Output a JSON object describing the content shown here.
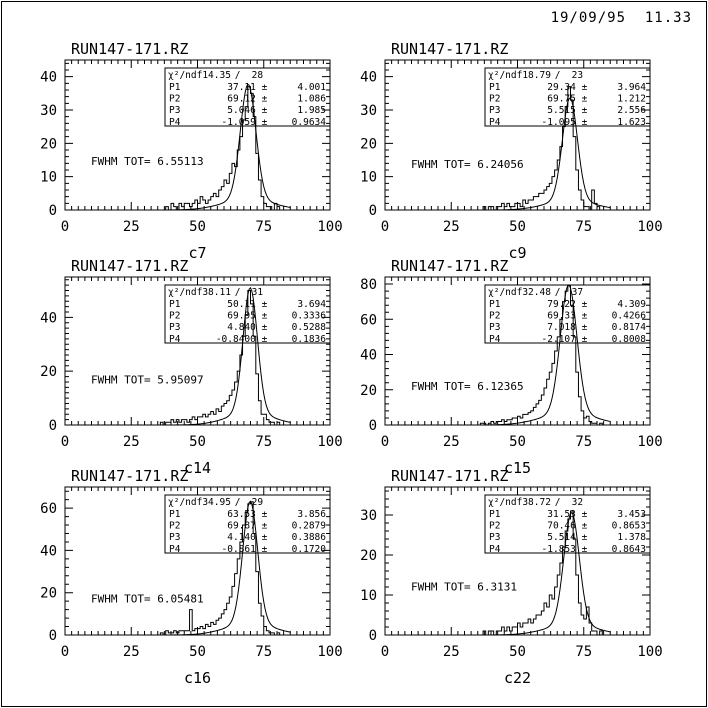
{
  "window": {
    "bg": "#ffffff",
    "fg": "#000000"
  },
  "header": {
    "datetime": "19/09/95  11.33"
  },
  "chart_data": [
    {
      "type": "bar",
      "subtype": "step-histogram-with-gaussian-fit",
      "title": "RUN147-171.RZ",
      "xlabel": "c7",
      "xlim": [
        0,
        100
      ],
      "xticks": [
        0,
        25,
        50,
        75,
        100
      ],
      "x_minor_step": 2.5,
      "ylim": [
        0,
        45
      ],
      "yticks": [
        0,
        10,
        20,
        30,
        40
      ],
      "y_minor_step": 2,
      "grid": false,
      "stats": {
        "chi2_label": "χ²/ndf",
        "chi2": "14.35",
        "ndf": "28",
        "rows": [
          [
            "P1",
            "37.11",
            "4.001"
          ],
          [
            "P2",
            "69.12",
            "1.086"
          ],
          [
            "P3",
            "5.046",
            "1.985"
          ],
          [
            "P4",
            "-1.059",
            "0.9634"
          ]
        ]
      },
      "fwhm_label": "FWHM TOT=  6.55113",
      "fit": {
        "amp": 37,
        "mean": 69.1,
        "sigma": 2.9
      },
      "hist": {
        "x_start": 35,
        "bin_width": 1,
        "counts": [
          0,
          0,
          0,
          1,
          0,
          2,
          1,
          0,
          2,
          1,
          2,
          2,
          1,
          2,
          3,
          2,
          4,
          3,
          2,
          3,
          4,
          5,
          4,
          6,
          7,
          9,
          8,
          11,
          14,
          13,
          18,
          22,
          27,
          31,
          37,
          35,
          28,
          17,
          9,
          4,
          2,
          1,
          1,
          0,
          2,
          1,
          0,
          0,
          0,
          0
        ]
      }
    },
    {
      "type": "bar",
      "subtype": "step-histogram-with-gaussian-fit",
      "title": "RUN147-171.RZ",
      "xlabel": "c9",
      "xlim": [
        0,
        100
      ],
      "xticks": [
        0,
        25,
        50,
        75,
        100
      ],
      "x_minor_step": 2.5,
      "ylim": [
        0,
        45
      ],
      "yticks": [
        0,
        10,
        20,
        30,
        40
      ],
      "y_minor_step": 2,
      "grid": false,
      "stats": {
        "chi2_label": "χ²/ndf",
        "chi2": "18.79",
        "ndf": "23",
        "rows": [
          [
            "P1",
            "29.34",
            "3.964"
          ],
          [
            "P2",
            "69.75",
            "1.212"
          ],
          [
            "P3",
            "5.515",
            "2.556"
          ],
          [
            "P4",
            "-1.095",
            "1.623"
          ]
        ]
      },
      "fwhm_label": "FWHM TOT=  6.24056",
      "fit": {
        "amp": 33,
        "mean": 69.8,
        "sigma": 2.8
      },
      "hist": {
        "x_start": 35,
        "bin_width": 1,
        "counts": [
          0,
          0,
          1,
          0,
          1,
          1,
          0,
          1,
          1,
          2,
          1,
          2,
          1,
          1,
          2,
          2,
          1,
          3,
          2,
          3,
          3,
          4,
          4,
          5,
          5,
          6,
          7,
          8,
          10,
          12,
          15,
          19,
          25,
          31,
          37,
          33,
          22,
          12,
          6,
          3,
          1,
          1,
          0,
          6,
          2,
          1,
          0,
          0,
          0,
          0
        ]
      }
    },
    {
      "type": "bar",
      "subtype": "step-histogram-with-gaussian-fit",
      "title": "RUN147-171.RZ",
      "xlabel": "c14",
      "xlim": [
        0,
        100
      ],
      "xticks": [
        0,
        25,
        50,
        75,
        100
      ],
      "x_minor_step": 2.5,
      "ylim": [
        0,
        55
      ],
      "yticks": [
        0,
        20,
        40
      ],
      "y_minor_step": 2,
      "grid": false,
      "stats": {
        "chi2_label": "χ²/ndf",
        "chi2": "38.11",
        "ndf": "31",
        "rows": [
          [
            "P1",
            "50.11",
            "3.694"
          ],
          [
            "P2",
            "69.95",
            "0.3336"
          ],
          [
            "P3",
            "4.840",
            "0.5288"
          ],
          [
            "P4",
            "-0.8400",
            "0.1836"
          ]
        ]
      },
      "fwhm_label": "FWHM TOT=  5.95097",
      "fit": {
        "amp": 50,
        "mean": 69.9,
        "sigma": 2.7
      },
      "hist": {
        "x_start": 35,
        "bin_width": 1,
        "counts": [
          0,
          1,
          0,
          1,
          1,
          2,
          1,
          2,
          1,
          2,
          2,
          1,
          2,
          3,
          2,
          3,
          3,
          4,
          3,
          4,
          5,
          4,
          6,
          5,
          7,
          8,
          9,
          11,
          13,
          16,
          20,
          26,
          33,
          41,
          50,
          45,
          33,
          19,
          9,
          4,
          4,
          2,
          1,
          1,
          0,
          1,
          0,
          0,
          0,
          0
        ]
      }
    },
    {
      "type": "bar",
      "subtype": "step-histogram-with-gaussian-fit",
      "title": "RUN147-171.RZ",
      "xlabel": "c15",
      "xlim": [
        0,
        100
      ],
      "xticks": [
        0,
        25,
        50,
        75,
        100
      ],
      "x_minor_step": 2.5,
      "ylim": [
        0,
        84
      ],
      "yticks": [
        0,
        20,
        40,
        60,
        80
      ],
      "y_minor_step": 4,
      "grid": false,
      "stats": {
        "chi2_label": "χ²/ndf",
        "chi2": "32.48",
        "ndf": "37",
        "rows": [
          [
            "P1",
            "79.22",
            "4.309"
          ],
          [
            "P2",
            "69.33",
            "0.4266"
          ],
          [
            "P3",
            "7.018",
            "0.8174"
          ],
          [
            "P4",
            "-2.107",
            "0.8008"
          ]
        ]
      },
      "fwhm_label": "FWHM TOT=  6.12365",
      "fit": {
        "amp": 78,
        "mean": 69.3,
        "sigma": 3.1
      },
      "hist": {
        "x_start": 35,
        "bin_width": 1,
        "counts": [
          0,
          1,
          1,
          0,
          1,
          2,
          1,
          2,
          2,
          3,
          2,
          3,
          3,
          4,
          4,
          5,
          4,
          6,
          6,
          7,
          8,
          10,
          12,
          14,
          17,
          21,
          26,
          30,
          35,
          42,
          50,
          60,
          70,
          76,
          79,
          68,
          50,
          30,
          16,
          8,
          4,
          5,
          2,
          1,
          1,
          0,
          1,
          0,
          0,
          0
        ]
      }
    },
    {
      "type": "bar",
      "subtype": "step-histogram-with-gaussian-fit",
      "title": "RUN147-171.RZ",
      "xlabel": "c16",
      "xlim": [
        0,
        100
      ],
      "xticks": [
        0,
        25,
        50,
        75,
        100
      ],
      "x_minor_step": 2.5,
      "ylim": [
        0,
        70
      ],
      "yticks": [
        0,
        20,
        40,
        60
      ],
      "y_minor_step": 4,
      "grid": false,
      "stats": {
        "chi2_label": "χ²/ndf",
        "chi2": "34.95",
        "ndf": "29",
        "rows": [
          [
            "P1",
            "63.53",
            "3.856"
          ],
          [
            "P2",
            "69.87",
            "0.2879"
          ],
          [
            "P3",
            "4.140",
            "0.3886"
          ],
          [
            "P4",
            "-0.861",
            "0.1720"
          ]
        ]
      },
      "fwhm_label": "FWHM TOT=  6.05481",
      "fit": {
        "amp": 62,
        "mean": 69.9,
        "sigma": 2.8
      },
      "hist": {
        "x_start": 35,
        "bin_width": 1,
        "counts": [
          0,
          1,
          0,
          2,
          1,
          1,
          2,
          1,
          2,
          2,
          2,
          2,
          12,
          2,
          3,
          3,
          4,
          3,
          5,
          4,
          6,
          5,
          7,
          8,
          10,
          12,
          15,
          18,
          23,
          29,
          36,
          44,
          52,
          58,
          62,
          63,
          48,
          30,
          15,
          9,
          4,
          2,
          1,
          1,
          0,
          1,
          0,
          0,
          0,
          0
        ]
      }
    },
    {
      "type": "bar",
      "subtype": "step-histogram-with-gaussian-fit",
      "title": "RUN147-171.RZ",
      "xlabel": "c22",
      "xlim": [
        0,
        100
      ],
      "xticks": [
        0,
        25,
        50,
        75,
        100
      ],
      "x_minor_step": 2.5,
      "ylim": [
        0,
        37
      ],
      "yticks": [
        0,
        10,
        20,
        30
      ],
      "y_minor_step": 2,
      "grid": false,
      "stats": {
        "chi2_label": "χ²/ndf",
        "chi2": "38.72",
        "ndf": "32",
        "rows": [
          [
            "P1",
            "31.53",
            "3.453"
          ],
          [
            "P2",
            "70.46",
            "0.8653"
          ],
          [
            "P3",
            "5.514",
            "1.378"
          ],
          [
            "P4",
            "-1.853",
            "0.8643"
          ]
        ]
      },
      "fwhm_label": "FWHM TOT=  6.3131",
      "fit": {
        "amp": 30,
        "mean": 70.4,
        "sigma": 2.9
      },
      "hist": {
        "x_start": 35,
        "bin_width": 1,
        "counts": [
          0,
          0,
          1,
          0,
          1,
          1,
          0,
          1,
          1,
          2,
          1,
          2,
          1,
          2,
          2,
          3,
          2,
          3,
          3,
          4,
          3,
          4,
          5,
          5,
          6,
          8,
          7,
          10,
          9,
          12,
          15,
          18,
          22,
          26,
          29,
          31,
          24,
          15,
          8,
          5,
          4,
          7,
          3,
          1,
          1,
          0,
          1,
          0,
          0,
          0
        ]
      }
    }
  ]
}
